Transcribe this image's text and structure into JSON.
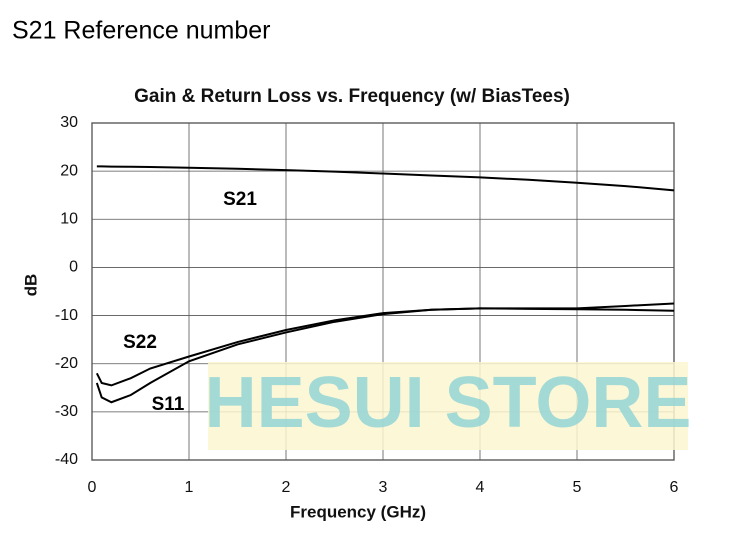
{
  "header": {
    "title": "S21 Reference number"
  },
  "watermark": "HESUI STORE",
  "chart_data": {
    "type": "line",
    "title": "Gain & Return Loss vs. Frequency (w/ BiasTees)",
    "x_label": "Frequency (GHz)",
    "y_label": "dB",
    "x": [
      0.05,
      0.1,
      0.2,
      0.4,
      0.6,
      1,
      1.5,
      2,
      2.5,
      3,
      3.5,
      4,
      4.5,
      5,
      5.5,
      6
    ],
    "series": [
      {
        "name": "S21",
        "color": "#000000",
        "values": [
          21,
          21,
          20.95,
          20.9,
          20.85,
          20.7,
          20.5,
          20.2,
          19.9,
          19.5,
          19.1,
          18.7,
          18.2,
          17.6,
          16.9,
          16.0
        ]
      },
      {
        "name": "S22",
        "color": "#000000",
        "values": [
          -22,
          -24,
          -24.5,
          -23,
          -21,
          -18.5,
          -15.5,
          -13,
          -11,
          -9.5,
          -8.8,
          -8.5,
          -8.5,
          -8.5,
          -8,
          -7.5
        ]
      },
      {
        "name": "S11",
        "color": "#000000",
        "values": [
          -24,
          -27,
          -28,
          -26.5,
          -24,
          -19.5,
          -16,
          -13.5,
          -11.3,
          -9.7,
          -8.8,
          -8.5,
          -8.6,
          -8.7,
          -8.8,
          -9
        ]
      }
    ],
    "xlim": [
      0,
      6
    ],
    "xticks": [
      0,
      1,
      2,
      3,
      4,
      5,
      6
    ],
    "ylim": [
      -40,
      30
    ],
    "yticks": [
      -40,
      -30,
      -20,
      -10,
      0,
      10,
      20,
      30
    ],
    "grid": true
  }
}
